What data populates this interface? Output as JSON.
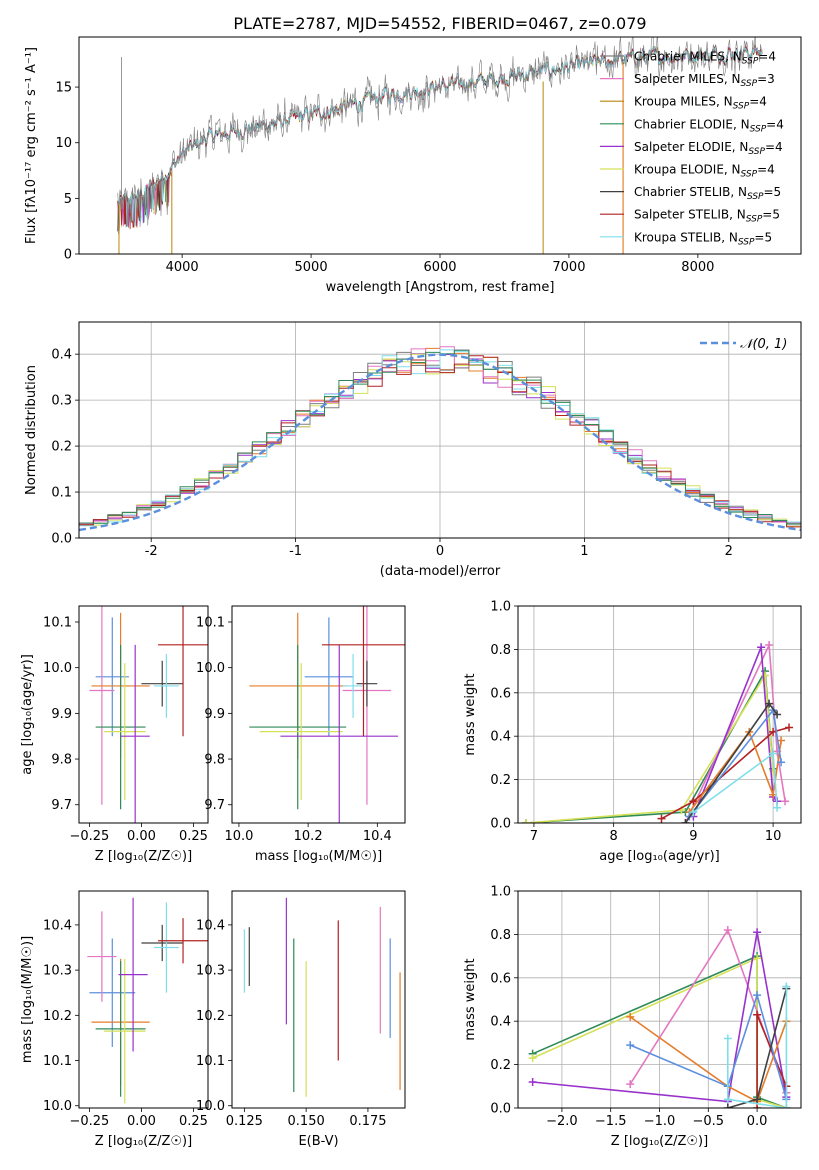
{
  "figure": {
    "title": "PLATE=2787, MJD=54552, FIBERID=0467, z=0.079"
  },
  "chart_data": [
    {
      "id": "spectrum",
      "type": "line",
      "xlabel": "wavelength [Angstrom, rest frame]",
      "ylabel": "Flux [fλ10⁻¹⁷ erg cm⁻² s⁻¹ A⁻¹]",
      "xlim": [
        3200,
        8800
      ],
      "ylim": [
        0,
        19.5
      ],
      "xticks": [
        4000,
        5000,
        6000,
        7000,
        8000
      ],
      "yticks": [
        0,
        5,
        10,
        15
      ],
      "grid": false,
      "legend_position": "top-right",
      "continuum": {
        "x": [
          3500,
          3700,
          3900,
          4000,
          4200,
          4500,
          4800,
          5000,
          5300,
          5600,
          6000,
          6300,
          6600,
          7000,
          7400,
          7800,
          8200,
          8500
        ],
        "y": [
          4.5,
          5.5,
          7.5,
          9.0,
          10.5,
          11.2,
          12.0,
          12.5,
          13.3,
          14.3,
          15.0,
          15.5,
          16.0,
          16.8,
          17.5,
          17.8,
          18.0,
          18.2
        ]
      },
      "series": [
        {
          "name": "Chabrier MILES, N",
          "sub": "SSP",
          "suffix": "=4",
          "color": "#7f7f7f"
        },
        {
          "name": "Salpeter MILES, N",
          "sub": "SSP",
          "suffix": "=3",
          "color": "#e377c2"
        },
        {
          "name": "Kroupa MILES, N",
          "sub": "SSP",
          "suffix": "=4",
          "color": "#b8860b"
        },
        {
          "name": "Chabrier ELODIE, N",
          "sub": "SSP",
          "suffix": "=4",
          "color": "#2e8b57"
        },
        {
          "name": "Salpeter ELODIE, N",
          "sub": "SSP",
          "suffix": "=4",
          "color": "#9932cc"
        },
        {
          "name": "Kroupa ELODIE, N",
          "sub": "SSP",
          "suffix": "=4",
          "color": "#d4e157"
        },
        {
          "name": "Chabrier STELIB, N",
          "sub": "SSP",
          "suffix": "=5",
          "color": "#404040"
        },
        {
          "name": "Salpeter STELIB, N",
          "sub": "SSP",
          "suffix": "=5",
          "color": "#b22222"
        },
        {
          "name": "Kroupa STELIB, N",
          "sub": "SSP",
          "suffix": "=5",
          "color": "#80deea"
        }
      ]
    },
    {
      "id": "residuals",
      "type": "bar",
      "xlabel": "(data-model)/error",
      "ylabel": "Normed distribution",
      "xlim": [
        -2.5,
        2.5
      ],
      "ylim": [
        0,
        0.47
      ],
      "xticks": [
        -2,
        -1,
        0,
        1,
        2
      ],
      "yticks": [
        0.0,
        0.1,
        0.2,
        0.3,
        0.4
      ],
      "grid": true,
      "legend_position": "top-right",
      "legend_label": "𝒩(0, 1)",
      "bin_width": 0.1,
      "hist_colors": [
        "#e57c2a",
        "#9932cc",
        "#d4e157",
        "#e377c2",
        "#7f7f7f",
        "#80deea",
        "#b22222",
        "#2e8b57"
      ]
    },
    {
      "id": "age-vs-Z",
      "type": "scatter",
      "xlabel": "Z [log₁₀(Z/Z☉)]",
      "ylabel": "age  [log₁₀(age/yr)]",
      "xlim": [
        -0.3,
        0.32
      ],
      "ylim": [
        9.66,
        10.135
      ],
      "xticks": [
        -0.25,
        0.0,
        0.25
      ],
      "xtick_labels": [
        "−0.25",
        "0.00",
        "0.25"
      ],
      "yticks": [
        9.7,
        9.8,
        9.9,
        10.0,
        10.1
      ],
      "points": [
        {
          "c": "#5b8fde",
          "x": -0.14,
          "xe": 0.08,
          "y": 9.98,
          "ye": 0.13
        },
        {
          "c": "#e377c2",
          "x": -0.19,
          "xe": 0.06,
          "y": 9.95,
          "ye": 0.25
        },
        {
          "c": "#e57c2a",
          "x": -0.1,
          "xe": 0.14,
          "y": 9.96,
          "ye": 0.16
        },
        {
          "c": "#2e8b57",
          "x": -0.1,
          "xe": 0.12,
          "y": 9.87,
          "ye": 0.18
        },
        {
          "c": "#d4e157",
          "x": -0.08,
          "xe": 0.1,
          "y": 9.86,
          "ye": 0.15
        },
        {
          "c": "#9932cc",
          "x": -0.03,
          "xe": 0.07,
          "y": 9.85,
          "ye": 0.2
        },
        {
          "c": "#404040",
          "x": 0.1,
          "xe": 0.1,
          "y": 9.965,
          "ye": 0.05
        },
        {
          "c": "#80deea",
          "x": 0.12,
          "xe": 0.06,
          "y": 9.96,
          "ye": 0.07
        },
        {
          "c": "#b22222",
          "x": 0.2,
          "xe": 0.12,
          "y": 10.05,
          "ye": 0.2
        }
      ]
    },
    {
      "id": "age-vs-mass",
      "type": "scatter",
      "xlabel": "mass [log₁₀(M/M☉)]",
      "ylabel": "",
      "xlim": [
        9.98,
        10.48
      ],
      "ylim": [
        9.66,
        10.135
      ],
      "xticks": [
        10.0,
        10.2,
        10.4
      ],
      "xtick_labels": [
        "10.0",
        "10.2",
        "10.4"
      ],
      "yticks": [
        9.7,
        9.8,
        9.9,
        10.0,
        10.1
      ],
      "points": [
        {
          "c": "#5b8fde",
          "x": 10.26,
          "xe": 0.07,
          "y": 9.98,
          "ye": 0.13
        },
        {
          "c": "#e377c2",
          "x": 10.37,
          "xe": 0.07,
          "y": 9.95,
          "ye": 0.25
        },
        {
          "c": "#e57c2a",
          "x": 10.17,
          "xe": 0.14,
          "y": 9.96,
          "ye": 0.16
        },
        {
          "c": "#2e8b57",
          "x": 10.17,
          "xe": 0.14,
          "y": 9.87,
          "ye": 0.18
        },
        {
          "c": "#d4e157",
          "x": 10.18,
          "xe": 0.12,
          "y": 9.86,
          "ye": 0.15
        },
        {
          "c": "#9932cc",
          "x": 10.29,
          "xe": 0.17,
          "y": 9.85,
          "ye": 0.2
        },
        {
          "c": "#404040",
          "x": 10.37,
          "xe": 0.03,
          "y": 9.965,
          "ye": 0.05
        },
        {
          "c": "#80deea",
          "x": 10.33,
          "xe": 0.03,
          "y": 9.96,
          "ye": 0.07
        },
        {
          "c": "#b22222",
          "x": 10.36,
          "xe": 0.12,
          "y": 10.05,
          "ye": 0.2
        }
      ]
    },
    {
      "id": "weight-vs-age",
      "type": "line",
      "xlabel": "age  [log₁₀(age/yr)]",
      "ylabel": "mass weight",
      "xlim": [
        6.8,
        10.35
      ],
      "ylim": [
        0,
        1
      ],
      "xticks": [
        7,
        8,
        9,
        10
      ],
      "yticks": [
        0.0,
        0.2,
        0.4,
        0.6,
        0.8,
        1.0
      ],
      "grid": true,
      "series": [
        {
          "c": "#2e8b57",
          "x": [
            6.9,
            8.9,
            9.9,
            10.0
          ],
          "y": [
            0.0,
            0.05,
            0.7,
            0.25
          ]
        },
        {
          "c": "#d4e157",
          "x": [
            6.9,
            8.85,
            9.9,
            10.0
          ],
          "y": [
            0.0,
            0.06,
            0.68,
            0.24
          ]
        },
        {
          "c": "#e377c2",
          "x": [
            8.9,
            9.95,
            10.05,
            10.15
          ],
          "y": [
            0.0,
            0.82,
            0.33,
            0.1
          ]
        },
        {
          "c": "#9932cc",
          "x": [
            9.0,
            9.85,
            10.0,
            10.05
          ],
          "y": [
            0.03,
            0.81,
            0.12,
            0.1
          ]
        },
        {
          "c": "#b22222",
          "x": [
            8.6,
            9.0,
            10.0,
            10.2
          ],
          "y": [
            0.02,
            0.1,
            0.42,
            0.44
          ]
        },
        {
          "c": "#e57c2a",
          "x": [
            8.95,
            9.7,
            10.0,
            10.1
          ],
          "y": [
            0.05,
            0.42,
            0.13,
            0.38
          ]
        },
        {
          "c": "#5b8fde",
          "x": [
            8.95,
            10.0,
            10.1
          ],
          "y": [
            0.03,
            0.52,
            0.28
          ]
        },
        {
          "c": "#404040",
          "x": [
            8.9,
            9.95,
            10.05
          ],
          "y": [
            0.0,
            0.55,
            0.5
          ]
        },
        {
          "c": "#80deea",
          "x": [
            9.0,
            10.0,
            10.05
          ],
          "y": [
            0.05,
            0.32,
            0.07
          ]
        }
      ]
    },
    {
      "id": "mass-vs-Z",
      "type": "scatter",
      "xlabel": "Z [log₁₀(Z/Z☉)]",
      "ylabel": "mass [log₁₀(M/M☉)]",
      "xlim": [
        -0.3,
        0.32
      ],
      "ylim": [
        9.995,
        10.475
      ],
      "xticks": [
        -0.25,
        0.0,
        0.25
      ],
      "xtick_labels": [
        "−0.25",
        "0.00",
        "0.25"
      ],
      "yticks": [
        10.0,
        10.1,
        10.2,
        10.3,
        10.4
      ],
      "points": [
        {
          "c": "#5b8fde",
          "x": -0.14,
          "xe": 0.11,
          "y": 10.25,
          "ye": 0.12
        },
        {
          "c": "#e377c2",
          "x": -0.19,
          "xe": 0.07,
          "y": 10.33,
          "ye": 0.1
        },
        {
          "c": "#e57c2a",
          "x": -0.1,
          "xe": 0.14,
          "y": 10.185,
          "ye": 0.14
        },
        {
          "c": "#2e8b57",
          "x": -0.1,
          "xe": 0.12,
          "y": 10.17,
          "ye": 0.15
        },
        {
          "c": "#d4e157",
          "x": -0.08,
          "xe": 0.1,
          "y": 10.165,
          "ye": 0.16
        },
        {
          "c": "#9932cc",
          "x": -0.04,
          "xe": 0.07,
          "y": 10.29,
          "ye": 0.17
        },
        {
          "c": "#404040",
          "x": 0.1,
          "xe": 0.1,
          "y": 10.36,
          "ye": 0.04
        },
        {
          "c": "#80deea",
          "x": 0.12,
          "xe": 0.06,
          "y": 10.35,
          "ye": 0.1
        },
        {
          "c": "#b22222",
          "x": 0.2,
          "xe": 0.12,
          "y": 10.365,
          "ye": 0.05
        }
      ]
    },
    {
      "id": "mass-vs-EBV",
      "type": "scatter",
      "xlabel": "E(B-V)",
      "ylabel": "",
      "xlim": [
        0.12,
        0.19
      ],
      "ylim": [
        9.995,
        10.475
      ],
      "xticks": [
        0.125,
        0.15,
        0.175
      ],
      "xtick_labels": [
        "0.125",
        "0.150",
        "0.175"
      ],
      "yticks": [
        10.0,
        10.1,
        10.2,
        10.3,
        10.4
      ],
      "points": [
        {
          "c": "#5b8fde",
          "x": 0.184,
          "xe": 0,
          "y": 10.26,
          "ye": 0.11
        },
        {
          "c": "#e377c2",
          "x": 0.18,
          "xe": 0,
          "y": 10.3,
          "ye": 0.14
        },
        {
          "c": "#e57c2a",
          "x": 0.188,
          "xe": 0,
          "y": 10.165,
          "ye": 0.13
        },
        {
          "c": "#2e8b57",
          "x": 0.145,
          "xe": 0,
          "y": 10.2,
          "ye": 0.17
        },
        {
          "c": "#d4e157",
          "x": 0.15,
          "xe": 0,
          "y": 10.17,
          "ye": 0.15
        },
        {
          "c": "#9932cc",
          "x": 0.142,
          "xe": 0,
          "y": 10.32,
          "ye": 0.14
        },
        {
          "c": "#404040",
          "x": 0.127,
          "xe": 0,
          "y": 10.33,
          "ye": 0.065
        },
        {
          "c": "#80deea",
          "x": 0.125,
          "xe": 0,
          "y": 10.32,
          "ye": 0.07
        },
        {
          "c": "#b22222",
          "x": 0.163,
          "xe": 0,
          "y": 10.255,
          "ye": 0.155
        }
      ]
    },
    {
      "id": "weight-vs-Z",
      "type": "line",
      "xlabel": "Z [log₁₀(Z/Z☉)]",
      "ylabel": "mass weight",
      "xlim": [
        -2.45,
        0.45
      ],
      "ylim": [
        0,
        1
      ],
      "xticks": [
        -2.0,
        -1.5,
        -1.0,
        -0.5,
        0.0
      ],
      "xtick_labels": [
        "−2.0",
        "−1.5",
        "−1.0",
        "−0.5",
        "0.0"
      ],
      "yticks": [
        0.0,
        0.2,
        0.4,
        0.6,
        0.8,
        1.0
      ],
      "grid": true,
      "series": [
        {
          "c": "#2e8b57",
          "x": [
            -2.3,
            0.0,
            0.0,
            0.3
          ],
          "y": [
            0.25,
            0.7,
            0.05,
            0.0
          ]
        },
        {
          "c": "#d4e157",
          "x": [
            -2.3,
            0.0,
            0.0,
            0.3
          ],
          "y": [
            0.23,
            0.69,
            0.04,
            0.0
          ]
        },
        {
          "c": "#e377c2",
          "x": [
            -1.3,
            -0.3,
            0.3
          ],
          "y": [
            0.11,
            0.82,
            0.07
          ]
        },
        {
          "c": "#9932cc",
          "x": [
            -2.3,
            -0.3,
            0.0,
            0.3
          ],
          "y": [
            0.12,
            0.03,
            0.81,
            0.05
          ]
        },
        {
          "c": "#b22222",
          "x": [
            0.0,
            0.0,
            0.3
          ],
          "y": [
            0.0,
            0.43,
            0.1
          ]
        },
        {
          "c": "#e57c2a",
          "x": [
            -1.3,
            -0.3,
            0.0,
            0.3
          ],
          "y": [
            0.42,
            0.1,
            0.03,
            0.4
          ]
        },
        {
          "c": "#5b8fde",
          "x": [
            -1.3,
            -0.3,
            0.0,
            0.3
          ],
          "y": [
            0.29,
            0.1,
            0.52,
            0.04
          ]
        },
        {
          "c": "#404040",
          "x": [
            -0.3,
            0.0,
            0.3
          ],
          "y": [
            0.0,
            0.04,
            0.55
          ]
        },
        {
          "c": "#80deea",
          "x": [
            -0.3,
            -0.3,
            0.3,
            0.3
          ],
          "y": [
            0.32,
            0.04,
            0.0,
            0.56
          ]
        }
      ]
    }
  ]
}
